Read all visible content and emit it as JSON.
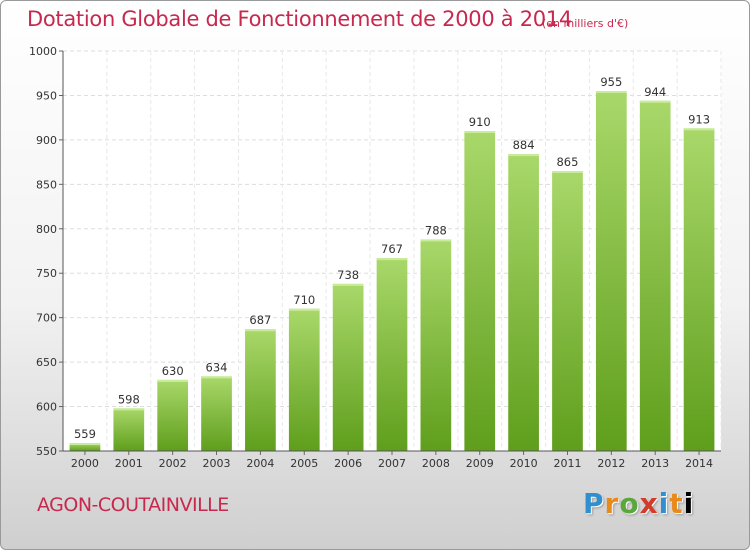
{
  "header": {
    "title": "Dotation Globale de Fonctionnement de 2000 à 2014",
    "units": "(en milliers d'€)"
  },
  "footer": {
    "commune": "AGON-COUTAINVILLE",
    "logo": "Proxiti"
  },
  "colors": {
    "title": "#c8284e",
    "bar_top": "#a9d86a",
    "bar_bottom": "#5f9e1c"
  },
  "chart_data": {
    "type": "bar",
    "title": "Dotation Globale de Fonctionnement de 2000 à 2014",
    "subtitle": "(en milliers d'€)",
    "xlabel": "",
    "ylabel": "",
    "categories": [
      "2000",
      "2001",
      "2002",
      "2003",
      "2004",
      "2005",
      "2006",
      "2007",
      "2008",
      "2009",
      "2010",
      "2011",
      "2012",
      "2013",
      "2014"
    ],
    "values": [
      559,
      598,
      630,
      634,
      687,
      710,
      738,
      767,
      788,
      910,
      884,
      865,
      955,
      944,
      913
    ],
    "ylim": [
      550,
      1000
    ],
    "yticks": [
      550,
      600,
      650,
      700,
      750,
      800,
      850,
      900,
      950,
      1000
    ],
    "grid": true,
    "legend": "none"
  }
}
